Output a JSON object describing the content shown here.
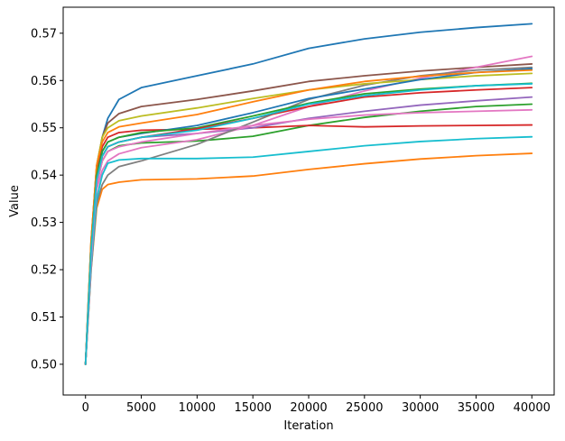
{
  "chart_data": {
    "type": "line",
    "title": "",
    "xlabel": "Iteration",
    "ylabel": "Value",
    "xlim": [
      -2000,
      42000
    ],
    "ylim": [
      0.4935,
      0.5755
    ],
    "xticks": [
      0,
      5000,
      10000,
      15000,
      20000,
      25000,
      30000,
      35000,
      40000
    ],
    "xtick_labels": [
      "0",
      "5000",
      "10000",
      "15000",
      "20000",
      "25000",
      "30000",
      "35000",
      "40000"
    ],
    "yticks": [
      0.5,
      0.51,
      0.52,
      0.53,
      0.54,
      0.55,
      0.56,
      0.57
    ],
    "ytick_labels": [
      "0.50",
      "0.51",
      "0.52",
      "0.53",
      "0.54",
      "0.55",
      "0.56",
      "0.57"
    ],
    "grid": false,
    "legend": "none",
    "x": [
      0,
      500,
      1000,
      1500,
      2000,
      3000,
      5000,
      10000,
      15000,
      20000,
      25000,
      30000,
      35000,
      40000
    ],
    "series": [
      {
        "color": "#1f77b4",
        "values": [
          0.5,
          0.525,
          0.541,
          0.548,
          0.552,
          0.556,
          0.5585,
          0.561,
          0.5635,
          0.5668,
          0.5688,
          0.5702,
          0.5712,
          0.572
        ]
      },
      {
        "color": "#ff7f0e",
        "values": [
          0.5,
          0.52,
          0.533,
          0.537,
          0.538,
          0.5385,
          0.539,
          0.5392,
          0.5398,
          0.5412,
          0.5424,
          0.5434,
          0.5441,
          0.5446
        ]
      },
      {
        "color": "#2ca02c",
        "values": [
          0.5,
          0.522,
          0.538,
          0.543,
          0.545,
          0.5462,
          0.5468,
          0.5472,
          0.5482,
          0.5505,
          0.5522,
          0.5535,
          0.5545,
          0.555
        ]
      },
      {
        "color": "#d62728",
        "values": [
          0.5,
          0.525,
          0.541,
          0.546,
          0.548,
          0.549,
          0.5495,
          0.5497,
          0.55,
          0.5505,
          0.5502,
          0.5504,
          0.5505,
          0.5506
        ]
      },
      {
        "color": "#9467bd",
        "values": [
          0.5,
          0.524,
          0.539,
          0.544,
          0.546,
          0.547,
          0.548,
          0.5488,
          0.55,
          0.552,
          0.5535,
          0.5548,
          0.5557,
          0.5565
        ]
      },
      {
        "color": "#8c564b",
        "values": [
          0.5,
          0.526,
          0.542,
          0.548,
          0.551,
          0.553,
          0.5545,
          0.556,
          0.5578,
          0.5598,
          0.561,
          0.562,
          0.5628,
          0.5635
        ]
      },
      {
        "color": "#e377c2",
        "values": [
          0.5,
          0.522,
          0.537,
          0.541,
          0.543,
          0.5445,
          0.5458,
          0.5475,
          0.5505,
          0.5545,
          0.5578,
          0.5605,
          0.5628,
          0.5651
        ]
      },
      {
        "color": "#7f7f7f",
        "values": [
          0.5,
          0.52,
          0.534,
          0.538,
          0.54,
          0.5418,
          0.543,
          0.5465,
          0.5512,
          0.556,
          0.559,
          0.561,
          0.5622,
          0.5628
        ]
      },
      {
        "color": "#bcbd22",
        "values": [
          0.5,
          0.526,
          0.542,
          0.548,
          0.55,
          0.5515,
          0.5525,
          0.5542,
          0.5562,
          0.558,
          0.5593,
          0.5602,
          0.561,
          0.5615
        ]
      },
      {
        "color": "#17becf",
        "values": [
          0.5,
          0.521,
          0.535,
          0.54,
          0.5425,
          0.5432,
          0.5435,
          0.5435,
          0.5438,
          0.545,
          0.5462,
          0.5471,
          0.5477,
          0.5481
        ]
      },
      {
        "color": "#1f77b4",
        "values": [
          0.5,
          0.524,
          0.54,
          0.545,
          0.547,
          0.548,
          0.5488,
          0.5505,
          0.5532,
          0.5562,
          0.5582,
          0.5602,
          0.5617,
          0.5625
        ]
      },
      {
        "color": "#ff7f0e",
        "values": [
          0.5,
          0.526,
          0.542,
          0.547,
          0.549,
          0.5502,
          0.551,
          0.5528,
          0.5555,
          0.558,
          0.5598,
          0.5609,
          0.5617,
          0.5622
        ]
      },
      {
        "color": "#2ca02c",
        "values": [
          0.5,
          0.524,
          0.54,
          0.545,
          0.547,
          0.548,
          0.549,
          0.55,
          0.5525,
          0.5552,
          0.5572,
          0.5582,
          0.5589,
          0.5594
        ]
      },
      {
        "color": "#d62728",
        "values": [
          0.5,
          0.523,
          0.539,
          0.544,
          0.546,
          0.547,
          0.548,
          0.5498,
          0.552,
          0.5545,
          0.5565,
          0.5574,
          0.558,
          0.5585
        ]
      },
      {
        "color": "#e377c2",
        "values": [
          0.5,
          0.522,
          0.538,
          0.543,
          0.545,
          0.546,
          0.547,
          0.5488,
          0.5505,
          0.5518,
          0.5527,
          0.5532,
          0.5535,
          0.5538
        ]
      },
      {
        "color": "#17becf",
        "values": [
          0.5,
          0.524,
          0.539,
          0.544,
          0.546,
          0.547,
          0.548,
          0.5495,
          0.552,
          0.555,
          0.5568,
          0.558,
          0.5589,
          0.5593
        ]
      }
    ]
  }
}
